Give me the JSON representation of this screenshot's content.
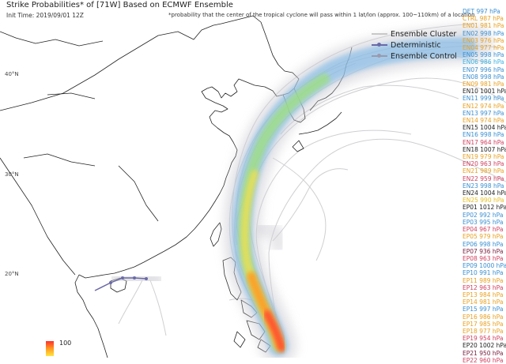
{
  "header": {
    "title": "Strike Probabilities* of [71W] Based on ECMWF Ensemble",
    "init_time": "Init Time: 2019/09/01 12Z",
    "note": "*probability that the center of the tropical cyclone will pass within 1 lat/lon (approx. 100~110km) of a location"
  },
  "axis": {
    "lat_labels": [
      "40°N",
      "30°N",
      "20°N"
    ]
  },
  "legend": {
    "items": [
      {
        "label": "Ensemble Cluster",
        "color": "#c8c8c8"
      },
      {
        "label": "Deterministic",
        "color": "#6a6aa8"
      },
      {
        "label": "Ensemble Control",
        "color": "#9a9aae"
      }
    ]
  },
  "colorbar": {
    "max_label": "100",
    "colors": [
      "#ff3030",
      "#ff9a20",
      "#ffe640"
    ]
  },
  "members": [
    {
      "label": "DET 997 hPa",
      "color": "#3a8fd0"
    },
    {
      "label": "CTRL 987 hPa",
      "color": "#e8a020"
    },
    {
      "label": "EN01 981 hPa",
      "color": "#e8a020"
    },
    {
      "label": "EN02 998 hPa",
      "color": "#3a8fd0"
    },
    {
      "label": "EN03 976 hPa",
      "color": "#e8a020"
    },
    {
      "label": "EN04 977 hPa",
      "color": "#e8a020"
    },
    {
      "label": "EN05 998 hPa",
      "color": "#3a8fd0"
    },
    {
      "label": "EN06 986 hPa",
      "color": "#3ab0e0"
    },
    {
      "label": "EN07 996 hPa",
      "color": "#3a8fd0"
    },
    {
      "label": "EN08 998 hPa",
      "color": "#3a8fd0"
    },
    {
      "label": "EN09 981 hPa",
      "color": "#e8a020"
    },
    {
      "label": "EN10 1001 hPa",
      "color": "#222222"
    },
    {
      "label": "EN11 999 hPa",
      "color": "#3a8fd0"
    },
    {
      "label": "EN12 974 hPa",
      "color": "#e8a020"
    },
    {
      "label": "EN13 997 hPa",
      "color": "#3a8fd0"
    },
    {
      "label": "EN14 974 hPa",
      "color": "#e8a020"
    },
    {
      "label": "EN15 1004 hPa",
      "color": "#222222"
    },
    {
      "label": "EN16 998 hPa",
      "color": "#3a8fd0"
    },
    {
      "label": "EN17 964 hPa",
      "color": "#d04060"
    },
    {
      "label": "EN18 1007 hPa",
      "color": "#222222"
    },
    {
      "label": "EN19 979 hPa",
      "color": "#e8a020"
    },
    {
      "label": "EN20 963 hPa",
      "color": "#d04060"
    },
    {
      "label": "EN21 989 hPa",
      "color": "#e8a020"
    },
    {
      "label": "EN22 959 hPa",
      "color": "#d04060"
    },
    {
      "label": "EN23 998 hPa",
      "color": "#3a8fd0"
    },
    {
      "label": "EN24 1004 hPa",
      "color": "#222222"
    },
    {
      "label": "EN25 990 hPa",
      "color": "#e8c020"
    },
    {
      "label": "EP01 1012 hPa",
      "color": "#222222"
    },
    {
      "label": "EP02 992 hPa",
      "color": "#3a8fd0"
    },
    {
      "label": "EP03 995 hPa",
      "color": "#3a8fd0"
    },
    {
      "label": "EP04 967 hPa",
      "color": "#d04060"
    },
    {
      "label": "EP05 979 hPa",
      "color": "#e8a020"
    },
    {
      "label": "EP06 998 hPa",
      "color": "#3a8fd0"
    },
    {
      "label": "EP07 936 hPa",
      "color": "#7a2040"
    },
    {
      "label": "EP08 963 hPa",
      "color": "#d04060"
    },
    {
      "label": "EP09 1000 hPa",
      "color": "#3a8fd0"
    },
    {
      "label": "EP10 991 hPa",
      "color": "#3a8fd0"
    },
    {
      "label": "EP11 989 hPa",
      "color": "#e8a020"
    },
    {
      "label": "EP12 963 hPa",
      "color": "#d04060"
    },
    {
      "label": "EP13 984 hPa",
      "color": "#e8a020"
    },
    {
      "label": "EP14 981 hPa",
      "color": "#e8a020"
    },
    {
      "label": "EP15 997 hPa",
      "color": "#3a8fd0"
    },
    {
      "label": "EP16 986 hPa",
      "color": "#e8a020"
    },
    {
      "label": "EP17 985 hPa",
      "color": "#e8a020"
    },
    {
      "label": "EP18 977 hPa",
      "color": "#e8a020"
    },
    {
      "label": "EP19 954 hPa",
      "color": "#d04060"
    },
    {
      "label": "EP20 1002 hPa",
      "color": "#222222"
    },
    {
      "label": "EP21 950 hPa",
      "color": "#7a2040"
    },
    {
      "label": "EP22 960 hPa",
      "color": "#d04060"
    }
  ]
}
